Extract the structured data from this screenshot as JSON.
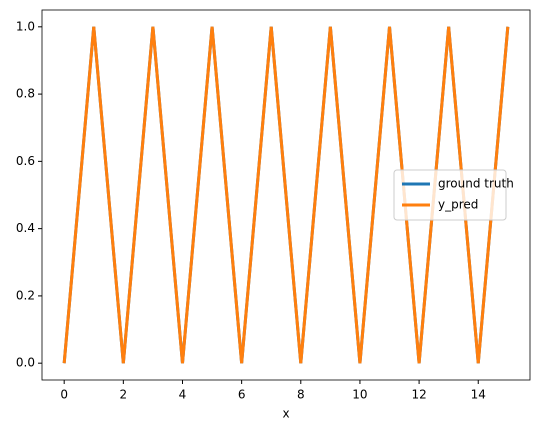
{
  "chart_data": {
    "type": "line",
    "xlabel": "x",
    "x": [
      0,
      1,
      2,
      3,
      4,
      5,
      6,
      7,
      8,
      9,
      10,
      11,
      12,
      13,
      14,
      15
    ],
    "series": [
      {
        "name": "ground truth",
        "color": "#1f77b4",
        "values": [
          0,
          1,
          0,
          1,
          0,
          1,
          0,
          1,
          0,
          1,
          0,
          1,
          0,
          1,
          0,
          1
        ]
      },
      {
        "name": "y_pred",
        "color": "#ff7f0e",
        "values": [
          0,
          1,
          0,
          1,
          0,
          1,
          0,
          1,
          0,
          1,
          0,
          1,
          0,
          1,
          0,
          1
        ]
      }
    ],
    "xlim": [
      -0.75,
      15.75
    ],
    "ylim": [
      -0.05,
      1.05
    ],
    "xticks": [
      0,
      2,
      4,
      6,
      8,
      10,
      12,
      14
    ],
    "yticks": [
      {
        "value": 0,
        "label": "0.0"
      },
      {
        "value": 0.2,
        "label": "0.2"
      },
      {
        "value": 0.4,
        "label": "0.4"
      },
      {
        "value": 0.6,
        "label": "0.6"
      },
      {
        "value": 0.8,
        "label": "0.8"
      },
      {
        "value": 1,
        "label": "1.0"
      }
    ],
    "legend": "center right",
    "grid": false
  }
}
